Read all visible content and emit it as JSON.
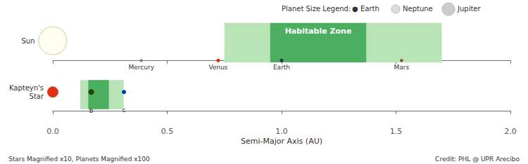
{
  "chart_data": [
    {
      "type": "scatter",
      "xlim": [
        0.0,
        2.0
      ],
      "xticks": [
        {
          "value": 0.0,
          "label": "0.0"
        },
        0.5,
        {
          "value": 1.0,
          "label": "1.0"
        },
        1.5,
        {
          "value": 2.0,
          "label": "2.0"
        }
      ],
      "tick_labels": false,
      "grid": false,
      "star": {
        "name": "Sun",
        "x": 0.0,
        "size": 1600,
        "color": "#fffff0",
        "edge_color": "#cccc99"
      },
      "habitable_zone": {
        "label": "Habitable Zone",
        "light": [
          0.75,
          1.7
        ],
        "dark": [
          0.95,
          1.37
        ],
        "light_color": "#b8e4b8",
        "dark_color": "#4caf60"
      },
      "planets": {
        "names": [
          "Mercury",
          "Venus",
          "Earth",
          "Mars"
        ],
        "x": [
          0.387,
          0.723,
          1.0,
          1.524
        ],
        "sizes": [
          4,
          5,
          5,
          4
        ],
        "colors": [
          "#777777",
          "#cc3300",
          "#223355",
          "#774422"
        ]
      },
      "size_legend": {
        "title": "Planet Size Legend:",
        "entries": [
          {
            "label": "● Earth",
            "color": "#333333"
          },
          {
            "label": "Neptune",
            "color": "#dddddd"
          },
          {
            "label": "Jupiter",
            "color": "#cccccc"
          }
        ]
      }
    },
    {
      "type": "scatter",
      "xlim": [
        0.0,
        2.0
      ],
      "xticks": [
        {
          "value": 0.0,
          "label": "0.0"
        },
        0.5,
        {
          "value": 1.0,
          "label": "1.0"
        },
        1.5,
        {
          "value": 2.0,
          "label": "2.0"
        }
      ],
      "xlabel": "Semi-Major Axis (AU)",
      "tick_labels": "x",
      "grid": false,
      "star": {
        "name": "Kapteyn's\nStar",
        "x": 0.0,
        "size": 220,
        "color": "#dd3311",
        "edge_color": "#dd3311"
      },
      "habitable_zone": {
        "light": [
          0.12,
          0.31
        ],
        "dark": [
          0.155,
          0.245
        ],
        "light_color": "#b8e4b8",
        "dark_color": "#4caf60"
      },
      "planets": {
        "names": [
          "b",
          "c"
        ],
        "x": [
          0.168,
          0.311
        ],
        "sizes": [
          7,
          5
        ],
        "colors": [
          "#224400",
          "#0033cc"
        ]
      },
      "footnotes": [
        "Stars Magnified x10, Planets Magnified x100",
        "Credit: PHL @ UPR Arecibo"
      ]
    }
  ]
}
